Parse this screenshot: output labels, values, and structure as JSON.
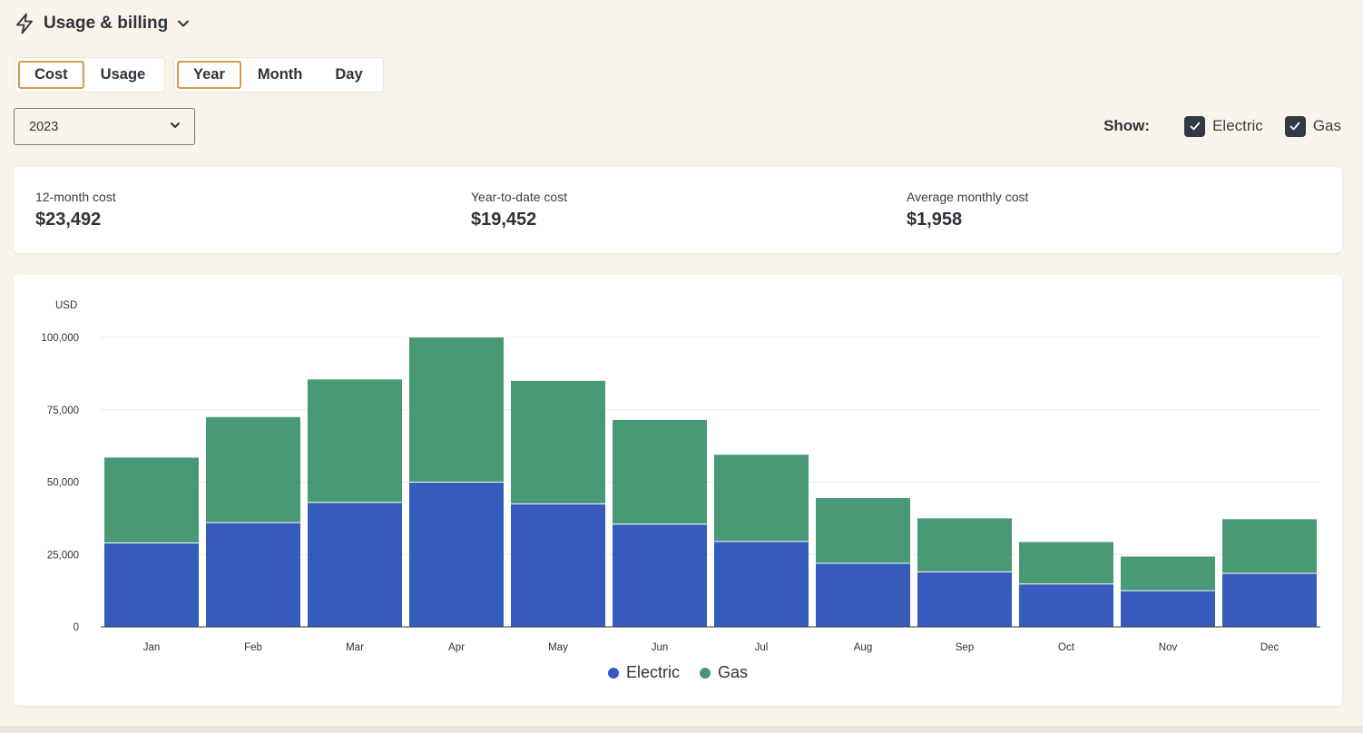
{
  "header": {
    "title": "Usage & billing",
    "icon": "lightning-icon"
  },
  "mode_toggle": {
    "options": [
      "Cost",
      "Usage"
    ],
    "selected": "Cost"
  },
  "period_toggle": {
    "options": [
      "Year",
      "Month",
      "Day"
    ],
    "selected": "Year"
  },
  "year_select": {
    "value": "2023"
  },
  "show": {
    "label": "Show:",
    "options": [
      {
        "label": "Electric",
        "checked": true
      },
      {
        "label": "Gas",
        "checked": true
      }
    ]
  },
  "stats": [
    {
      "label": "12-month cost",
      "value": "$23,492"
    },
    {
      "label": "Year-to-date cost",
      "value": "$19,452"
    },
    {
      "label": "Average monthly cost",
      "value": "$1,958"
    }
  ],
  "colors": {
    "electric": "#365bbd",
    "gas": "#489a77",
    "accent": "#d79a4a"
  },
  "chart_data": {
    "type": "bar",
    "stacked": true,
    "ylabel": "USD",
    "ylim": [
      0,
      100000
    ],
    "yticks": [
      0,
      25000,
      50000,
      75000,
      100000
    ],
    "ytick_labels": [
      "0",
      "25,000",
      "50,000",
      "75,000",
      "100,000"
    ],
    "grid": true,
    "legend": "bottom-center",
    "categories": [
      "Jan",
      "Feb",
      "Mar",
      "Apr",
      "May",
      "Jun",
      "Jul",
      "Aug",
      "Sep",
      "Oct",
      "Nov",
      "Dec"
    ],
    "series": [
      {
        "name": "Electric",
        "values": [
          29000,
          36000,
          43000,
          50000,
          42500,
          35500,
          29500,
          22000,
          19000,
          14800,
          12500,
          18500
        ]
      },
      {
        "name": "Gas",
        "values": [
          29500,
          36500,
          42500,
          50000,
          42500,
          36000,
          30000,
          22500,
          18500,
          14500,
          11800,
          18700
        ]
      }
    ]
  }
}
